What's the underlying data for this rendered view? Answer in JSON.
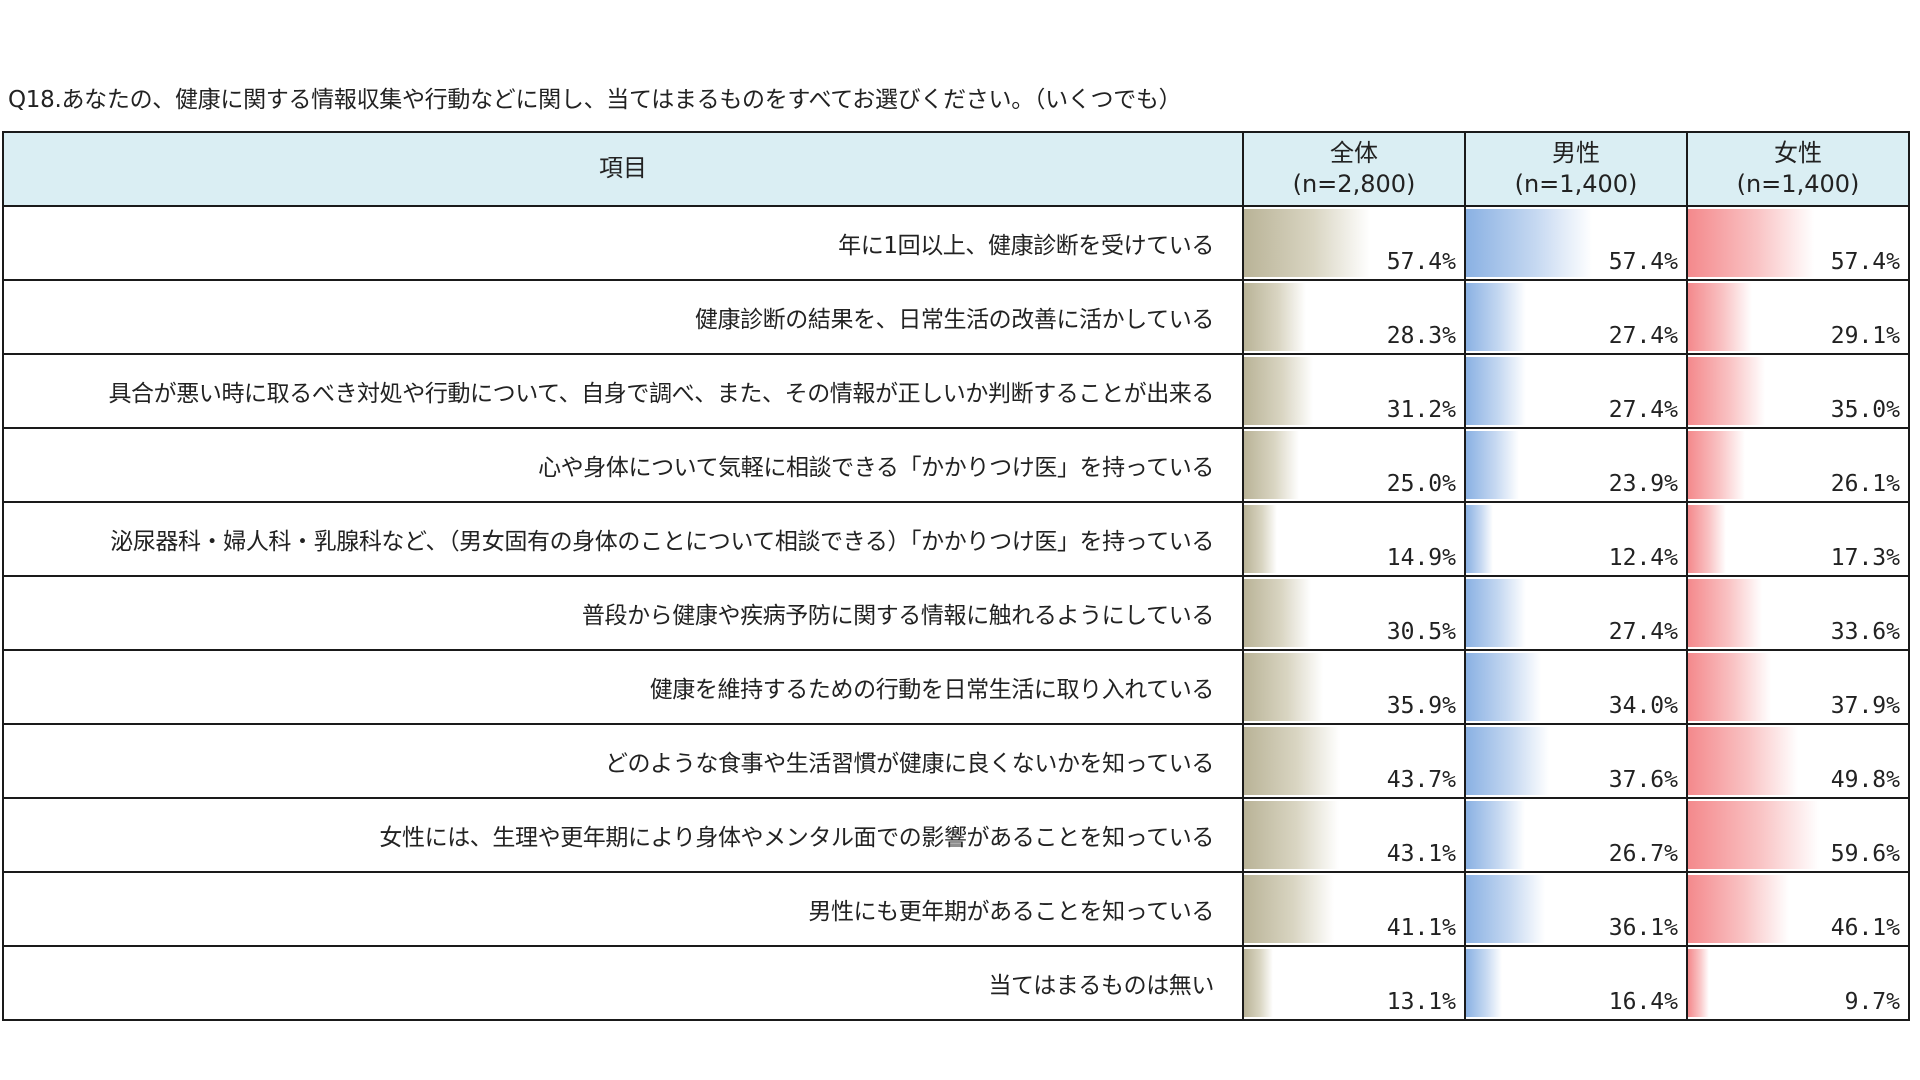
{
  "question": "Q18.あなたの、健康に関する情報収集や行動などに関し、当てはまるものをすべてお選びください。（いくつでも）",
  "chart_data": {
    "type": "table",
    "header_item": "項目",
    "series": [
      {
        "key": "total",
        "name": "全体",
        "n": "(n=2,800)",
        "color": "#b9b397",
        "values": [
          57.4,
          28.3,
          31.2,
          25.0,
          14.9,
          30.5,
          35.9,
          43.7,
          43.1,
          41.1,
          13.1
        ],
        "labels": [
          "57.4%",
          "28.3%",
          "31.2%",
          "25.0%",
          "14.9%",
          "30.5%",
          "35.9%",
          "43.7%",
          "43.1%",
          "41.1%",
          "13.1%"
        ]
      },
      {
        "key": "male",
        "name": "男性",
        "n": "(n=1,400)",
        "color": "#8ab1e3",
        "values": [
          57.4,
          27.4,
          27.4,
          23.9,
          12.4,
          27.4,
          34.0,
          37.6,
          26.7,
          36.1,
          16.4
        ],
        "labels": [
          "57.4%",
          "27.4%",
          "27.4%",
          "23.9%",
          "12.4%",
          "27.4%",
          "34.0%",
          "37.6%",
          "26.7%",
          "36.1%",
          "16.4%"
        ]
      },
      {
        "key": "female",
        "name": "女性",
        "n": "(n=1,400)",
        "color": "#f4898c",
        "values": [
          57.4,
          29.1,
          35.0,
          26.1,
          17.3,
          33.6,
          37.9,
          49.8,
          59.6,
          46.1,
          9.7
        ],
        "labels": [
          "57.4%",
          "29.1%",
          "35.0%",
          "26.1%",
          "17.3%",
          "33.6%",
          "37.9%",
          "49.8%",
          "59.6%",
          "46.1%",
          "9.7%"
        ]
      }
    ],
    "categories": [
      "年に1回以上、健康診断を受けている",
      "健康診断の結果を、日常生活の改善に活かしている",
      "具合が悪い時に取るべき対処や行動について、自身で調べ、また、その情報が正しいか判断することが出来る",
      "心や身体について気軽に相談できる「かかりつけ医」を持っている",
      "泌尿器科・婦人科・乳腺科など、（男女固有の身体のことについて相談できる）「かかりつけ医」を持っている",
      "普段から健康や疾病予防に関する情報に触れるようにしている",
      "健康を維持するための行動を日常生活に取り入れている",
      "どのような食事や生活習慣が健康に良くないかを知っている",
      "女性には、生理や更年期により身体やメンタル面での影響があることを知っている",
      "男性にも更年期があることを知っている",
      "当てはまるものは無い"
    ],
    "bar_scale_max": 100
  }
}
